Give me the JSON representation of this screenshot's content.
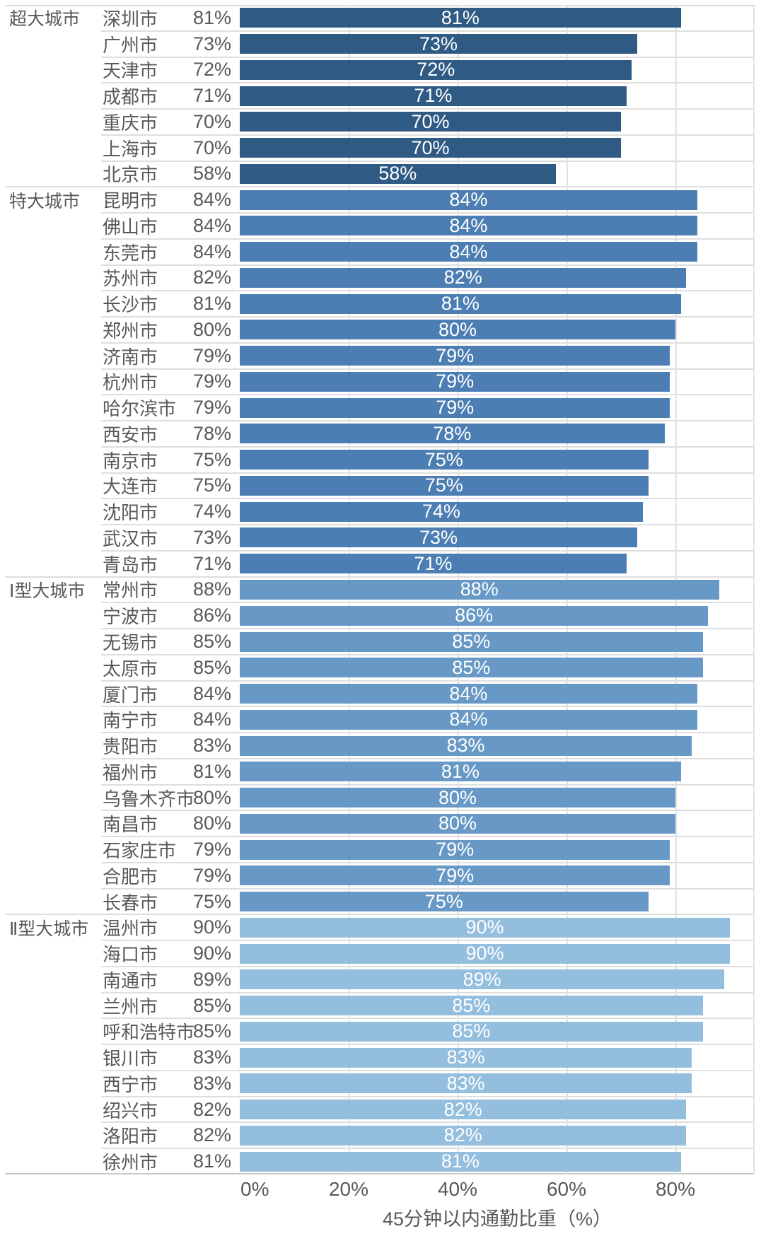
{
  "chart_data": {
    "type": "bar",
    "orientation": "horizontal",
    "xlabel": "45分钟以内通勤比重（%）",
    "x_ticks": [
      "0%",
      "20%",
      "40%",
      "60%",
      "80%"
    ],
    "x_tick_values": [
      0,
      20,
      40,
      60,
      80
    ],
    "xlim_pct": [
      0,
      94.5
    ],
    "value_suffix": "%",
    "grid": true,
    "groups": [
      {
        "label": "超大城市",
        "color": "#2e5a84",
        "cities": [
          {
            "city": "深圳市",
            "value": 81
          },
          {
            "city": "广州市",
            "value": 73
          },
          {
            "city": "天津市",
            "value": 72
          },
          {
            "city": "成都市",
            "value": 71
          },
          {
            "city": "重庆市",
            "value": 70
          },
          {
            "city": "上海市",
            "value": 70
          },
          {
            "city": "北京市",
            "value": 58
          }
        ]
      },
      {
        "label": "特大城市",
        "color": "#4c7eb3",
        "cities": [
          {
            "city": "昆明市",
            "value": 84
          },
          {
            "city": "佛山市",
            "value": 84
          },
          {
            "city": "东莞市",
            "value": 84
          },
          {
            "city": "苏州市",
            "value": 82
          },
          {
            "city": "长沙市",
            "value": 81
          },
          {
            "city": "郑州市",
            "value": 80
          },
          {
            "city": "济南市",
            "value": 79
          },
          {
            "city": "杭州市",
            "value": 79
          },
          {
            "city": "哈尔滨市",
            "value": 79
          },
          {
            "city": "西安市",
            "value": 78
          },
          {
            "city": "南京市",
            "value": 75
          },
          {
            "city": "大连市",
            "value": 75
          },
          {
            "city": "沈阳市",
            "value": 74
          },
          {
            "city": "武汉市",
            "value": 73
          },
          {
            "city": "青岛市",
            "value": 71
          }
        ]
      },
      {
        "label": "Ⅰ型大城市",
        "color": "#6899c6",
        "cities": [
          {
            "city": "常州市",
            "value": 88
          },
          {
            "city": "宁波市",
            "value": 86
          },
          {
            "city": "无锡市",
            "value": 85
          },
          {
            "city": "太原市",
            "value": 85
          },
          {
            "city": "厦门市",
            "value": 84
          },
          {
            "city": "南宁市",
            "value": 84
          },
          {
            "city": "贵阳市",
            "value": 83
          },
          {
            "city": "福州市",
            "value": 81
          },
          {
            "city": "乌鲁木齐市",
            "value": 80
          },
          {
            "city": "南昌市",
            "value": 80
          },
          {
            "city": "石家庄市",
            "value": 79
          },
          {
            "city": "合肥市",
            "value": 79
          },
          {
            "city": "长春市",
            "value": 75
          }
        ]
      },
      {
        "label": "Ⅱ型大城市",
        "color": "#94bede",
        "cities": [
          {
            "city": "温州市",
            "value": 90
          },
          {
            "city": "海口市",
            "value": 90
          },
          {
            "city": "南通市",
            "value": 89
          },
          {
            "city": "兰州市",
            "value": 85
          },
          {
            "city": "呼和浩特市",
            "value": 85
          },
          {
            "city": "银川市",
            "value": 83
          },
          {
            "city": "西宁市",
            "value": 83
          },
          {
            "city": "绍兴市",
            "value": 82
          },
          {
            "city": "洛阳市",
            "value": 82
          },
          {
            "city": "徐州市",
            "value": 81
          }
        ]
      }
    ]
  }
}
